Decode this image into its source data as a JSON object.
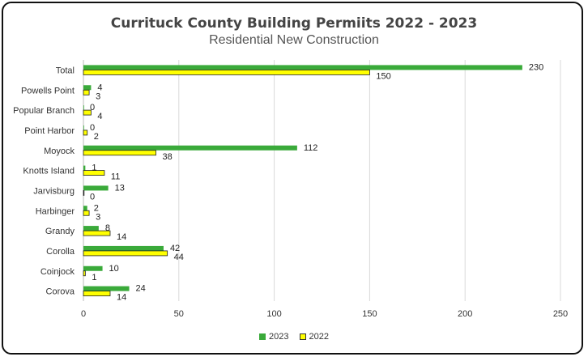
{
  "chart_data": {
    "type": "bar",
    "orientation": "horizontal",
    "title": "Currituck County Building Permiits 2022 - 2023",
    "subtitle": "Residential New Construction",
    "categories": [
      "Total",
      "Powells Point",
      "Popular Branch",
      "Point Harbor",
      "Moyock",
      "Knotts Island",
      "Jarvisburg",
      "Harbinger",
      "Grandy",
      "Corolla",
      "Coinjock",
      "Corova"
    ],
    "series": [
      {
        "name": "2023",
        "color": "#3AAA3A",
        "values": [
          230,
          4,
          0,
          0,
          112,
          1,
          13,
          2,
          8,
          42,
          10,
          24
        ]
      },
      {
        "name": "2022",
        "color": "#FFFF00",
        "values": [
          150,
          3,
          4,
          2,
          38,
          11,
          0,
          3,
          14,
          44,
          1,
          14
        ]
      }
    ],
    "xlim": [
      0,
      250
    ],
    "xticks": [
      0,
      50,
      100,
      150,
      200,
      250
    ],
    "grid": true,
    "legend_position": "bottom"
  }
}
